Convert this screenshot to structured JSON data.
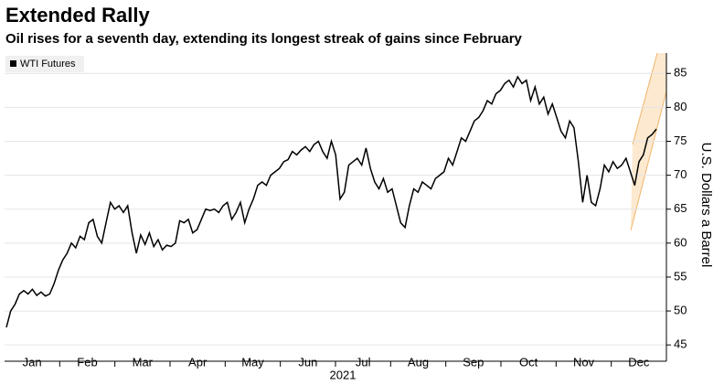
{
  "chart_data": {
    "type": "line",
    "title": "Extended Rally",
    "subtitle": "Oil rises for a seventh day, extending its longest streak of gains since February",
    "y_label": "U.S. Dollars a Barrel",
    "x_labels": [
      "Jan",
      "Feb",
      "Mar",
      "Apr",
      "May",
      "Jun",
      "Jul",
      "Aug",
      "Sep",
      "Oct",
      "Nov",
      "Dec"
    ],
    "x_year": "2021",
    "series": [
      {
        "name": "WTI Futures",
        "color": "#000000",
        "values": [
          47.6,
          50,
          51,
          52.5,
          53,
          52.5,
          53.2,
          52.3,
          52.8,
          52.2,
          52.5,
          54,
          56,
          57.5,
          58.5,
          60,
          59.3,
          61,
          60.5,
          63,
          63.5,
          61,
          60,
          63,
          66,
          65,
          65.5,
          64.5,
          65.5,
          61.5,
          58.5,
          61.2,
          59.8,
          61.5,
          59.5,
          60.5,
          59,
          59.7,
          59.5,
          60,
          63.3,
          63,
          63.5,
          61.5,
          62,
          63.5,
          65,
          64.8,
          65,
          64.5,
          65.5,
          66,
          63.5,
          64.5,
          66,
          63,
          65,
          66.5,
          68.5,
          69,
          68.5,
          70,
          70.5,
          71,
          72,
          72.3,
          73.5,
          73,
          73.7,
          74.2,
          73.5,
          74.5,
          75,
          73.5,
          72.5,
          75,
          73,
          66.5,
          67.5,
          71.5,
          72,
          72.5,
          71.5,
          74,
          71,
          69,
          68,
          69.5,
          67.5,
          68,
          65.5,
          63,
          62.3,
          65.5,
          68,
          67.5,
          69,
          68.5,
          68,
          69.5,
          70,
          70.5,
          72.5,
          71.5,
          73.5,
          75.5,
          75,
          76.5,
          78,
          78.5,
          79.5,
          81,
          80.5,
          82,
          82.5,
          83.5,
          84,
          83,
          84.5,
          83.5,
          84,
          81,
          83,
          80.5,
          81.5,
          79,
          80.5,
          78.5,
          76.5,
          75.5,
          78,
          77,
          72,
          66,
          70,
          66,
          65.5,
          68,
          71.5,
          70.5,
          72,
          71,
          71.5,
          72.5,
          70.5,
          68.5,
          72,
          73,
          75.5,
          76,
          76.8
        ]
      }
    ],
    "ylim": [
      42.6,
      88
    ],
    "yticks": [
      45,
      50,
      55,
      60,
      65,
      70,
      75,
      80,
      85
    ],
    "grid": true
  }
}
